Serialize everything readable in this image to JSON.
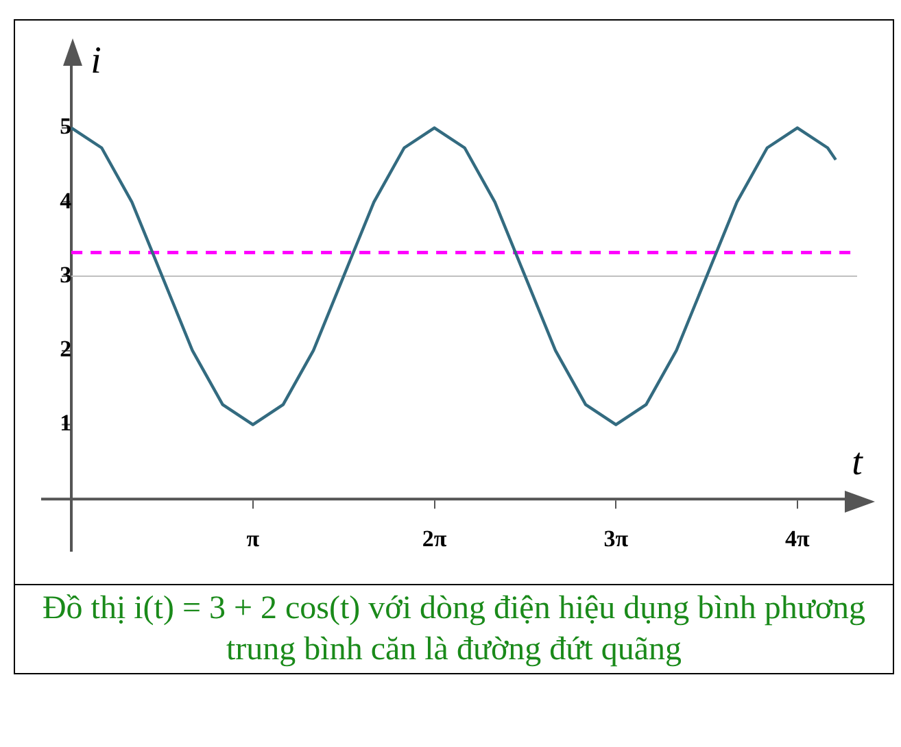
{
  "chart_data": {
    "type": "line",
    "xlabel": "t",
    "ylabel": "i",
    "x": [
      0,
      0.524,
      1.047,
      1.571,
      2.094,
      2.618,
      3.142,
      3.665,
      4.189,
      4.712,
      5.236,
      5.76,
      6.283,
      6.807,
      7.33,
      7.854,
      8.378,
      8.901,
      9.425,
      9.948,
      10.472,
      10.996,
      11.519,
      12.043,
      12.566,
      13.09,
      13.23
    ],
    "series": [
      {
        "color": "#336b80",
        "values": [
          5,
          4.73,
          4,
          3,
          2,
          1.27,
          1,
          1.27,
          2,
          3,
          4,
          4.73,
          5,
          4.73,
          4,
          3,
          2,
          1.27,
          1,
          1.27,
          2,
          3,
          4,
          4.73,
          5,
          4.73,
          4.57
        ]
      }
    ],
    "xlim": [
      -0.5,
      13.6
    ],
    "ylim": [
      -0.7,
      6
    ],
    "xticks": [
      {
        "value": 3.1416,
        "label": "π"
      },
      {
        "value": 6.2832,
        "label": "2π"
      },
      {
        "value": 9.4248,
        "label": "3π"
      },
      {
        "value": 12.5664,
        "label": "4π"
      }
    ],
    "yticks": [
      1,
      2,
      3,
      4,
      5
    ],
    "ref_lines": [
      {
        "axis": "y",
        "value": 3.32,
        "color": "#ff00ff",
        "line_style": "dashed"
      },
      {
        "axis": "y",
        "value": 3,
        "color": "#c0c0c0",
        "line_style": "solid"
      }
    ],
    "marker": "none",
    "line_style": "solid",
    "legend": false,
    "annotations": [
      "Đồ thị i(t) = 3 + 2 cos(t) với dòng điện hiệu dụng bình phương trung bình căn là đường đứt quãng"
    ]
  }
}
